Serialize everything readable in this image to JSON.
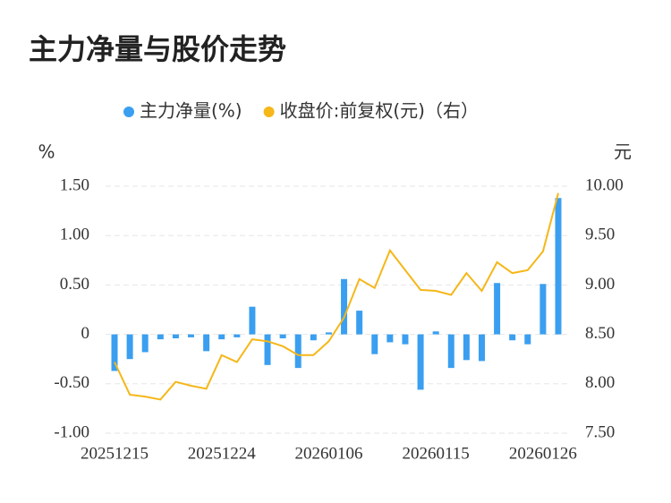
{
  "chart_data": {
    "type": "bar",
    "title": "主力净量与股价走势",
    "y_label": "%",
    "y2_label": "元",
    "categories": [
      "20251215",
      null,
      null,
      null,
      null,
      null,
      null,
      "20251224",
      null,
      null,
      null,
      null,
      null,
      null,
      "20260106",
      null,
      null,
      null,
      null,
      null,
      null,
      "20260115",
      null,
      null,
      null,
      null,
      null,
      null,
      "20260126",
      null
    ],
    "series": [
      {
        "name": "主力净量(%)",
        "type": "bar",
        "color": "#3a9ff0",
        "values": [
          -0.37,
          -0.25,
          -0.18,
          -0.05,
          -0.04,
          -0.03,
          -0.17,
          -0.05,
          -0.03,
          0.28,
          -0.31,
          -0.04,
          -0.34,
          -0.06,
          0.02,
          0.56,
          0.24,
          -0.2,
          -0.08,
          -0.1,
          -0.56,
          0.03,
          -0.34,
          -0.26,
          -0.27,
          0.52,
          -0.06,
          -0.1,
          0.51,
          1.38
        ]
      },
      {
        "name": "收盘价:前复权(元)（右）",
        "type": "line",
        "axis": "y2",
        "color": "#f5b719",
        "values": [
          8.22,
          7.89,
          7.87,
          7.84,
          8.02,
          7.98,
          7.95,
          8.29,
          8.22,
          8.45,
          8.43,
          8.38,
          8.29,
          8.29,
          8.43,
          8.67,
          9.06,
          8.97,
          9.35,
          9.15,
          8.95,
          8.94,
          8.9,
          9.12,
          8.94,
          9.23,
          9.12,
          9.15,
          9.34,
          9.93
        ]
      }
    ],
    "ylim": [
      -1,
      1.5
    ],
    "yticks": [
      {
        "value": -1,
        "label": "-1.00"
      },
      {
        "value": -0.5,
        "label": "-0.50"
      },
      0,
      {
        "value": 0.5,
        "label": "0.50"
      },
      {
        "value": 1,
        "label": "1.00"
      },
      {
        "value": 1.5,
        "label": "1.50"
      }
    ],
    "y2lim": [
      7.5,
      10
    ],
    "y2ticks": [
      {
        "value": 7.5,
        "label": "7.50"
      },
      {
        "value": 8,
        "label": "8.00"
      },
      {
        "value": 8.5,
        "label": "8.50"
      },
      {
        "value": 9,
        "label": "9.00"
      },
      {
        "value": 9.5,
        "label": "9.50"
      },
      {
        "value": 10,
        "label": "10.00"
      }
    ],
    "grid": true
  }
}
